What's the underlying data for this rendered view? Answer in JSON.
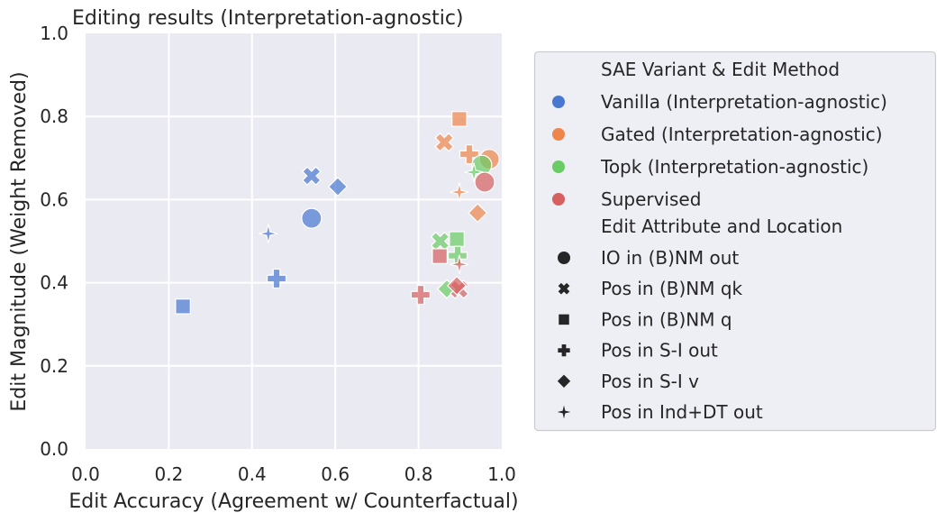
{
  "chart_data": {
    "type": "scatter",
    "title": "Editing results (Interpretation-agnostic)",
    "xlabel": "Edit Accuracy (Agreement w/ Counterfactual)",
    "ylabel": "Edit Magnitude (Weight Removed)",
    "xlim": [
      0.0,
      1.0
    ],
    "ylim": [
      0.0,
      1.0
    ],
    "xticks": [
      "0.0",
      "0.2",
      "0.4",
      "0.6",
      "0.8",
      "1.0"
    ],
    "yticks": [
      "0.0",
      "0.2",
      "0.4",
      "0.6",
      "0.8",
      "1.0"
    ],
    "grid": true,
    "legend": {
      "placement": "outside-right",
      "hue_title": "SAE Variant & Edit Method",
      "hue_entries": [
        {
          "key": "vanilla",
          "label": "Vanilla (Interpretation-agnostic)",
          "color": "#4878d0"
        },
        {
          "key": "gated",
          "label": "Gated (Interpretation-agnostic)",
          "color": "#ee854a"
        },
        {
          "key": "topk",
          "label": "Topk (Interpretation-agnostic)",
          "color": "#6acc64"
        },
        {
          "key": "supervised",
          "label": "Supervised",
          "color": "#d65f5f"
        }
      ],
      "style_title": "Edit Attribute and Location",
      "style_entries": [
        {
          "key": "circle",
          "label": "IO in (B)NM out"
        },
        {
          "key": "x",
          "label": "Pos in (B)NM qk"
        },
        {
          "key": "square",
          "label": "Pos in (B)NM q"
        },
        {
          "key": "plus",
          "label": "Pos in S-I out"
        },
        {
          "key": "diamond",
          "label": "Pos in S-I v"
        },
        {
          "key": "star",
          "label": "Pos in Ind+DT out"
        }
      ]
    },
    "series": [
      {
        "name": "Vanilla (Interpretation-agnostic)",
        "hue": "vanilla",
        "points": [
          {
            "marker": "circle",
            "x": 0.543,
            "y": 0.555
          },
          {
            "marker": "x",
            "x": 0.543,
            "y": 0.657
          },
          {
            "marker": "square",
            "x": 0.234,
            "y": 0.343
          },
          {
            "marker": "plus",
            "x": 0.459,
            "y": 0.41
          },
          {
            "marker": "diamond",
            "x": 0.606,
            "y": 0.631
          },
          {
            "marker": "star",
            "x": 0.439,
            "y": 0.518
          }
        ]
      },
      {
        "name": "Gated (Interpretation-agnostic)",
        "hue": "gated",
        "points": [
          {
            "marker": "circle",
            "x": 0.97,
            "y": 0.697
          },
          {
            "marker": "x",
            "x": 0.862,
            "y": 0.738
          },
          {
            "marker": "square",
            "x": 0.898,
            "y": 0.794
          },
          {
            "marker": "plus",
            "x": 0.922,
            "y": 0.709
          },
          {
            "marker": "diamond",
            "x": 0.942,
            "y": 0.568
          },
          {
            "marker": "star",
            "x": 0.898,
            "y": 0.618
          }
        ]
      },
      {
        "name": "Topk (Interpretation-agnostic)",
        "hue": "topk",
        "points": [
          {
            "marker": "circle",
            "x": 0.952,
            "y": 0.683
          },
          {
            "marker": "x",
            "x": 0.852,
            "y": 0.5
          },
          {
            "marker": "square",
            "x": 0.892,
            "y": 0.505
          },
          {
            "marker": "plus",
            "x": 0.894,
            "y": 0.465
          },
          {
            "marker": "diamond",
            "x": 0.868,
            "y": 0.385
          },
          {
            "marker": "star",
            "x": 0.933,
            "y": 0.666
          }
        ]
      },
      {
        "name": "Supervised",
        "hue": "supervised",
        "points": [
          {
            "marker": "circle",
            "x": 0.959,
            "y": 0.642
          },
          {
            "marker": "x",
            "x": 0.898,
            "y": 0.384
          },
          {
            "marker": "square",
            "x": 0.851,
            "y": 0.464
          },
          {
            "marker": "plus",
            "x": 0.805,
            "y": 0.371
          },
          {
            "marker": "diamond",
            "x": 0.892,
            "y": 0.393
          },
          {
            "marker": "star",
            "x": 0.898,
            "y": 0.444
          }
        ]
      }
    ]
  }
}
